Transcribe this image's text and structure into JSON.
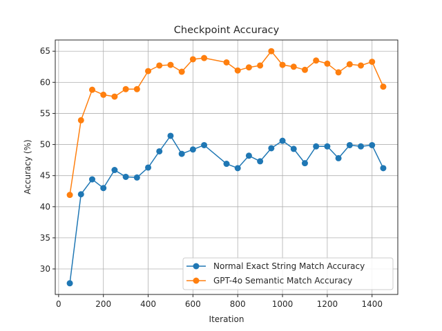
{
  "chart_data": {
    "type": "line",
    "title": "Checkpoint Accuracy",
    "xlabel": "Iteration",
    "ylabel": "Accuracy (%)",
    "xlim": [
      -15,
      1515
    ],
    "ylim": [
      25.9,
      66.8
    ],
    "xticks": [
      0,
      200,
      400,
      600,
      800,
      1000,
      1200,
      1400
    ],
    "yticks": [
      30,
      35,
      40,
      45,
      50,
      55,
      60,
      65
    ],
    "grid": true,
    "legend_position": "lower-right",
    "series": [
      {
        "name": "Normal Exact String Match Accuracy",
        "color": "#1f77b4",
        "points": [
          [
            50,
            27.7
          ],
          [
            100,
            42.0
          ],
          [
            150,
            44.4
          ],
          [
            200,
            43.0
          ],
          [
            250,
            45.9
          ],
          [
            300,
            44.8
          ],
          [
            350,
            44.7
          ],
          [
            400,
            46.3
          ],
          [
            450,
            48.9
          ],
          [
            500,
            51.4
          ],
          [
            550,
            48.5
          ],
          [
            600,
            49.2
          ],
          [
            650,
            49.9
          ],
          [
            750,
            46.9
          ],
          [
            800,
            46.2
          ],
          [
            850,
            48.2
          ],
          [
            900,
            47.3
          ],
          [
            950,
            49.4
          ],
          [
            1000,
            50.6
          ],
          [
            1050,
            49.3
          ],
          [
            1100,
            47.0
          ],
          [
            1150,
            49.7
          ],
          [
            1200,
            49.7
          ],
          [
            1250,
            47.8
          ],
          [
            1300,
            49.9
          ],
          [
            1350,
            49.7
          ],
          [
            1400,
            49.9
          ],
          [
            1450,
            46.2
          ]
        ]
      },
      {
        "name": "GPT-4o Semantic Match Accuracy",
        "color": "#ff7f0e",
        "points": [
          [
            50,
            41.9
          ],
          [
            100,
            53.9
          ],
          [
            150,
            58.8
          ],
          [
            200,
            58.0
          ],
          [
            250,
            57.7
          ],
          [
            300,
            58.9
          ],
          [
            350,
            58.9
          ],
          [
            400,
            61.8
          ],
          [
            450,
            62.7
          ],
          [
            500,
            62.8
          ],
          [
            550,
            61.7
          ],
          [
            600,
            63.7
          ],
          [
            650,
            63.9
          ],
          [
            750,
            63.2
          ],
          [
            800,
            61.9
          ],
          [
            850,
            62.4
          ],
          [
            900,
            62.7
          ],
          [
            950,
            65.0
          ],
          [
            1000,
            62.8
          ],
          [
            1050,
            62.5
          ],
          [
            1100,
            62.0
          ],
          [
            1150,
            63.5
          ],
          [
            1200,
            63.0
          ],
          [
            1250,
            61.6
          ],
          [
            1300,
            62.9
          ],
          [
            1350,
            62.7
          ],
          [
            1400,
            63.3
          ],
          [
            1450,
            59.3
          ]
        ]
      }
    ]
  }
}
